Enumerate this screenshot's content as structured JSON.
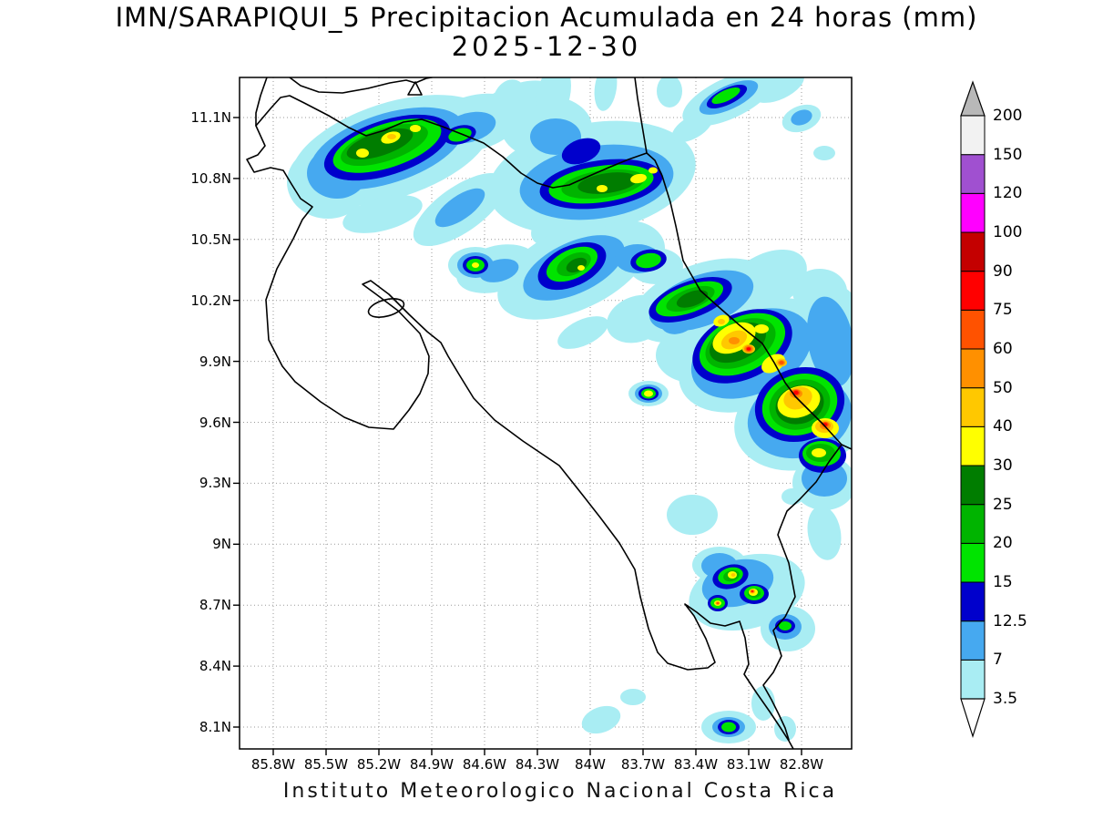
{
  "title": {
    "line1": "IMN/SARAPIQUI_5 Precipitacion Acumulada en 24 horas (mm)",
    "line2": "2025-12-30"
  },
  "footer": "Instituto Meteorologico Nacional Costa Rica",
  "map": {
    "y_tick_labels": [
      "11.1N",
      "10.8N",
      "10.5N",
      "10.2N",
      "9.9N",
      "9.6N",
      "9.3N",
      "9N",
      "8.7N",
      "8.4N",
      "8.1N"
    ],
    "x_tick_labels": [
      "85.8W",
      "85.5W",
      "85.2W",
      "84.9W",
      "84.6W",
      "84.3W",
      "84W",
      "83.7W",
      "83.4W",
      "83.1W",
      "82.8W"
    ]
  },
  "colorbar": {
    "labels_bottom_to_top": [
      "3.5",
      "7",
      "12.5",
      "15",
      "20",
      "25",
      "30",
      "40",
      "50",
      "60",
      "75",
      "90",
      "100",
      "120",
      "150",
      "200"
    ],
    "segment_colors_bottom_to_top": [
      "#a9edf3",
      "#46a9f0",
      "#0000cc",
      "#00e400",
      "#00b400",
      "#007d00",
      "#ffff00",
      "#ffc800",
      "#ff9000",
      "#ff5200",
      "#ff0000",
      "#c40000",
      "#ff00ff",
      "#a050d0",
      "#f2f2f2"
    ],
    "under_arrow_color": "#ffffff",
    "over_arrow_color": "#b8b8b8"
  }
}
